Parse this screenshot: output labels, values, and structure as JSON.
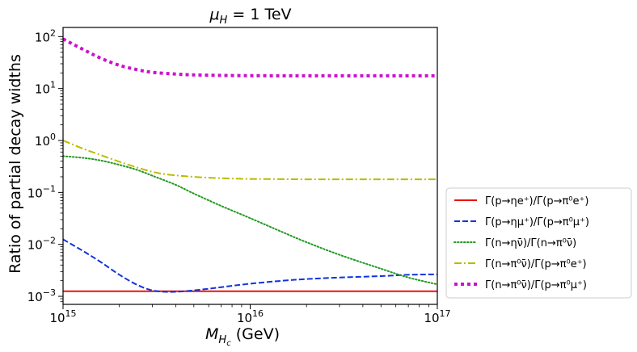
{
  "chart_data": {
    "type": "line",
    "title_main": "μ",
    "title_sub": "H",
    "title_rest": " = 1 TeV",
    "xlabel_main": "M",
    "xlabel_sub": "H",
    "xlabel_subsub": "c",
    "xlabel_rest": " (GeV)",
    "ylabel": "Ratio of partial decay widths",
    "x_scale": "log",
    "y_scale": "log",
    "xlim": [
      1000000000000000.0,
      1e+17
    ],
    "ylim": [
      0.0007,
      150
    ],
    "x_ticks": [
      {
        "value": 1000000000000000.0,
        "base": "10",
        "exp": "15"
      },
      {
        "value": 1e+16,
        "base": "10",
        "exp": "16"
      },
      {
        "value": 1e+17,
        "base": "10",
        "exp": "17"
      }
    ],
    "y_ticks": [
      {
        "value": 0.001,
        "base": "10",
        "exp": "−3"
      },
      {
        "value": 0.01,
        "base": "10",
        "exp": "−2"
      },
      {
        "value": 0.1,
        "base": "10",
        "exp": "−1"
      },
      {
        "value": 1,
        "base": "10",
        "exp": "0"
      },
      {
        "value": 10,
        "base": "10",
        "exp": "1"
      },
      {
        "value": 100,
        "base": "10",
        "exp": "2"
      }
    ],
    "legend_position": "right",
    "series": [
      {
        "name": "series-eta-e",
        "label": "Γ(p→ηe⁺)/Γ(p→π⁰e⁺)",
        "color": "#ee1111",
        "dash": "solid",
        "width": 2,
        "x": [
          1000000000000000.0,
          2000000000000000.0,
          5000000000000000.0,
          1e+16,
          2e+16,
          5e+16,
          1e+17
        ],
        "y": [
          0.00125,
          0.00125,
          0.00125,
          0.00125,
          0.00125,
          0.00125,
          0.00125
        ]
      },
      {
        "name": "series-eta-mu",
        "label": "Γ(p→ημ⁺)/Γ(p→π⁰μ⁺)",
        "color": "#1133dd",
        "dash": "dashed",
        "width": 2,
        "x": [
          1000000000000000.0,
          1300000000000000.0,
          1600000000000000.0,
          2000000000000000.0,
          2500000000000000.0,
          3000000000000000.0,
          3600000000000000.0,
          4300000000000000.0,
          5500000000000000.0,
          7000000000000000.0,
          1e+16,
          1.5e+16,
          2e+16,
          3e+16,
          5e+16,
          7e+16,
          1e+17
        ],
        "y": [
          0.0125,
          0.0072,
          0.0045,
          0.0026,
          0.00165,
          0.0013,
          0.00122,
          0.00124,
          0.00135,
          0.0015,
          0.00175,
          0.002,
          0.00215,
          0.0023,
          0.00245,
          0.0026,
          0.00265
        ]
      },
      {
        "name": "series-n-eta",
        "label": "Γ(n→ην̄)/Γ(n→π⁰ν̄)",
        "color": "#229922",
        "dash": "dotted",
        "width": 2,
        "x": [
          1000000000000000.0,
          1300000000000000.0,
          1600000000000000.0,
          2000000000000000.0,
          2500000000000000.0,
          3000000000000000.0,
          4000000000000000.0,
          5000000000000000.0,
          7000000000000000.0,
          1e+16,
          1.5e+16,
          2e+16,
          3e+16,
          5e+16,
          7e+16,
          1e+17
        ],
        "y": [
          0.5,
          0.46,
          0.41,
          0.34,
          0.27,
          0.21,
          0.14,
          0.095,
          0.055,
          0.032,
          0.017,
          0.011,
          0.0063,
          0.0034,
          0.0023,
          0.0017
        ]
      },
      {
        "name": "series-n-pi-e",
        "label": "Γ(n→π⁰ν̄)/Γ(p→π⁰e⁺)",
        "color": "#bbbb00",
        "dash": "dashdot",
        "width": 2,
        "x": [
          1000000000000000.0,
          1300000000000000.0,
          1600000000000000.0,
          2000000000000000.0,
          2500000000000000.0,
          3000000000000000.0,
          3500000000000000.0,
          4500000000000000.0,
          6000000000000000.0,
          8000000000000000.0,
          1e+16,
          1.5e+16,
          2e+16,
          3e+16,
          5e+16,
          1e+17
        ],
        "y": [
          1.0,
          0.68,
          0.52,
          0.39,
          0.3,
          0.25,
          0.225,
          0.205,
          0.192,
          0.185,
          0.182,
          0.18,
          0.179,
          0.179,
          0.179,
          0.179
        ]
      },
      {
        "name": "series-n-pi-mu",
        "label": "Γ(n→π⁰ν̄)/Γ(p→π⁰μ⁺)",
        "color": "#cc11cc",
        "dash": "heavydot",
        "width": 4,
        "x": [
          1000000000000000.0,
          1300000000000000.0,
          1600000000000000.0,
          2000000000000000.0,
          2500000000000000.0,
          3000000000000000.0,
          4000000000000000.0,
          5000000000000000.0,
          7000000000000000.0,
          1e+16,
          1.5e+16,
          2e+16,
          3e+16,
          5e+16,
          1e+17
        ],
        "y": [
          90,
          55,
          38,
          28,
          23,
          20.5,
          19,
          18.3,
          17.9,
          17.7,
          17.6,
          17.6,
          17.6,
          17.6,
          17.6
        ]
      }
    ]
  }
}
